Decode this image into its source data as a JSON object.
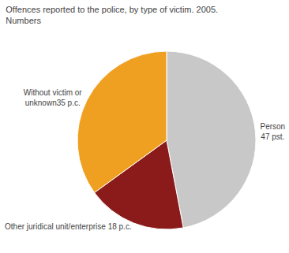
{
  "chart_data": {
    "type": "pie",
    "title": "Offences reported to the police, by type of victim. 2005.",
    "subtitle": "Numbers",
    "categories": [
      "Person\n47 pst.",
      "Other juridical unit/enterprise 18 p.c.",
      "Without victim or\nunknown35 p.c."
    ],
    "values": [
      47,
      18,
      35
    ],
    "colors": [
      "#c8c8c8",
      "#8b1a1a",
      "#f0a020"
    ]
  }
}
